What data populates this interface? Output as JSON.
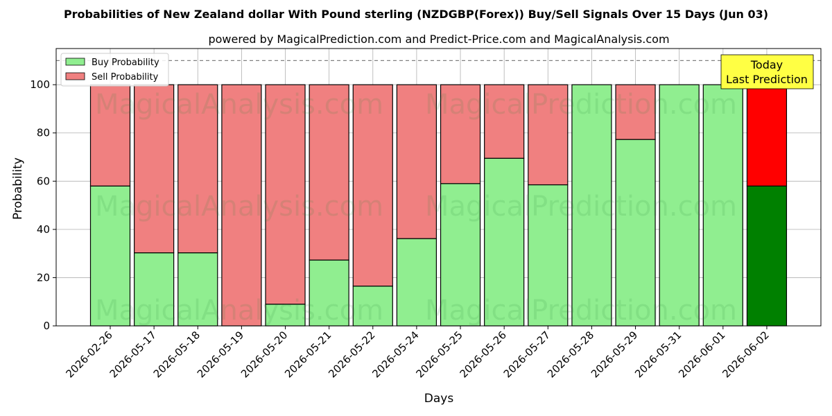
{
  "chart_data": {
    "type": "bar",
    "stacked": true,
    "title": "Probabilities of New Zealand dollar With Pound sterling (NZDGBP(Forex)) Buy/Sell Signals Over 15 Days (Jun 03)",
    "subtitle": "powered by MagicalPrediction.com and Predict-Price.com and MagicalAnalysis.com",
    "xlabel": "Days",
    "ylabel": "Probability",
    "ylim": [
      0,
      115
    ],
    "yticks": [
      0,
      20,
      40,
      60,
      80,
      100
    ],
    "reference_line": 110,
    "grid": true,
    "legend_position": "top-left",
    "categories": [
      "2026-02-26",
      "2026-05-17",
      "2026-05-18",
      "2026-05-19",
      "2026-05-20",
      "2026-05-21",
      "2026-05-22",
      "2026-05-24",
      "2026-05-25",
      "2026-05-26",
      "2026-05-27",
      "2026-05-28",
      "2026-05-29",
      "2026-05-31",
      "2026-06-01",
      "2026-06-02"
    ],
    "series": [
      {
        "name": "Buy Probability",
        "color": "#90ee90",
        "highlight_color": "#008000",
        "values": [
          58,
          30.3,
          30.3,
          0,
          9,
          27.3,
          16.5,
          36.2,
          59,
          69.5,
          58.5,
          100,
          77.3,
          100,
          100,
          58
        ]
      },
      {
        "name": "Sell Probability",
        "color": "#f08080",
        "highlight_color": "#ff0000",
        "values": [
          42,
          69.7,
          69.7,
          100,
          91,
          72.7,
          83.5,
          63.8,
          41,
          30.5,
          41.5,
          0,
          22.7,
          0,
          0,
          42
        ]
      }
    ],
    "highlight_index": 15,
    "annotation": {
      "lines": [
        "Today",
        "Last Prediction"
      ],
      "bg_color": "#ffff44"
    },
    "watermarks": [
      "MagicalAnalysis.com",
      "MagicalPrediction.com"
    ]
  }
}
